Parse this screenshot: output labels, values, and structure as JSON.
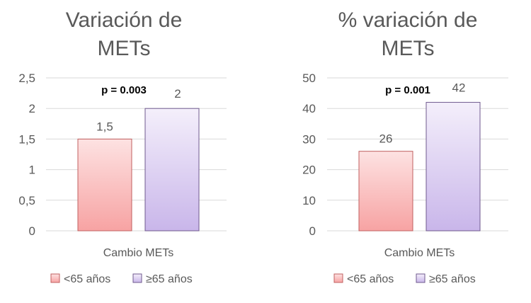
{
  "chart_data": [
    {
      "type": "bar",
      "title_lines": [
        "Variación  de",
        "METs"
      ],
      "annotation": "p = 0.003",
      "categories": [
        "Cambio METs"
      ],
      "series": [
        {
          "name": "<65 años",
          "values": [
            1.5
          ],
          "value_label": "1,5",
          "color_top": "#fde2e2",
          "color_bottom": "#f7a3a3",
          "stroke": "#c06060"
        },
        {
          "name": "≥65 años",
          "values": [
            2
          ],
          "value_label": "2",
          "color_top": "#f4effb",
          "color_bottom": "#c9b6ea",
          "stroke": "#6f5a8e"
        }
      ],
      "ylim": [
        0,
        2.5
      ],
      "yticks": [
        {
          "value": 0,
          "label": "0"
        },
        {
          "value": 0.5,
          "label": "0,5"
        },
        {
          "value": 1,
          "label": "1"
        },
        {
          "value": 1.5,
          "label": "1,5"
        },
        {
          "value": 2,
          "label": "2"
        },
        {
          "value": 2.5,
          "label": "2,5"
        }
      ],
      "grid": true,
      "legend_position": "bottom"
    },
    {
      "type": "bar",
      "title_lines": [
        "% variación de",
        "METs"
      ],
      "annotation": "p = 0.001",
      "categories": [
        "Cambio METs"
      ],
      "series": [
        {
          "name": "<65 años",
          "values": [
            26
          ],
          "value_label": "26",
          "color_top": "#fde2e2",
          "color_bottom": "#f7a3a3",
          "stroke": "#c06060"
        },
        {
          "name": "≥65 años",
          "values": [
            42
          ],
          "value_label": "42",
          "color_top": "#f4effb",
          "color_bottom": "#c9b6ea",
          "stroke": "#6f5a8e"
        }
      ],
      "ylim": [
        0,
        50
      ],
      "yticks": [
        {
          "value": 0,
          "label": "0"
        },
        {
          "value": 10,
          "label": "10"
        },
        {
          "value": 20,
          "label": "20"
        },
        {
          "value": 30,
          "label": "30"
        },
        {
          "value": 40,
          "label": "40"
        },
        {
          "value": 50,
          "label": "50"
        }
      ],
      "grid": true,
      "legend_position": "bottom"
    }
  ],
  "colors": {
    "text": "#595959",
    "grid": "#d9d9d9",
    "annotation": "#000000"
  }
}
